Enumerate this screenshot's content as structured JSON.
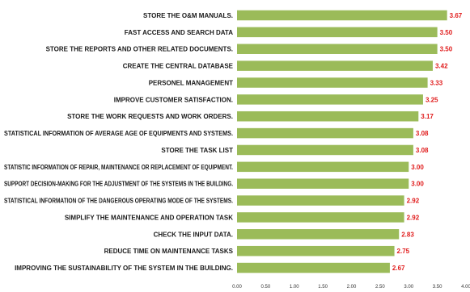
{
  "chart_data": {
    "type": "bar",
    "orientation": "horizontal",
    "categories": [
      "STORE THE O&M MANUALS.",
      "FAST ACCESS AND SEARCH DATA",
      "STORE THE  REPORTS AND OTHER RELATED DOCUMENTS.",
      "CREATE THE CENTRAL DATABASE",
      "PERSONEL MANAGEMENT",
      "IMPROVE CUSTOMER SATISFACTION.",
      "STORE THE WORK REQUESTS AND WORK ORDERS.",
      "STATISTICAL INFORMATION OF AVERAGE AGE OF EQUIPMENTS AND SYSTEMS.",
      "STORE THE TASK LIST",
      "STATISTIC INFORMATION OF REPAIR, MAINTENANCE OR REPLACEMENT OF EQUIPMENT.",
      "SUPPORT DECISION-MAKING FOR THE ADJUSTMENT OF THE SYSTEMS IN THE BUILDING.",
      "STATISTICAL INFORMATION OF THE DANGEROUS OPERATING MODE OF THE SYSTEMS.",
      "SIMPLIFY THE MAINTENANCE AND OPERATION TASK",
      "CHECK THE INPUT DATA.",
      "REDUCE TIME ON MAINTENANCE TASKS",
      "IMPROVING THE SUSTAINABILITY OF THE SYSTEM IN THE BUILDING."
    ],
    "values": [
      3.67,
      3.5,
      3.5,
      3.42,
      3.33,
      3.25,
      3.17,
      3.08,
      3.08,
      3.0,
      3.0,
      2.92,
      2.92,
      2.83,
      2.75,
      2.67
    ],
    "value_labels": [
      "3.67",
      "3.50",
      "3.50",
      "3.42",
      "3.33",
      "3.25",
      "3.17",
      "3.08",
      "3.08",
      "3.00",
      "3.00",
      "2.92",
      "2.92",
      "2.83",
      "2.75",
      "2.67"
    ],
    "xlim": [
      0,
      4
    ],
    "x_ticks": [
      "0.00",
      "0.50",
      "1.00",
      "1.50",
      "2.00",
      "2.50",
      "3.00",
      "3.50",
      "4.00"
    ],
    "title": "",
    "xlabel": "",
    "ylabel": "",
    "grid": false,
    "legend": "none",
    "bar_color": "#9bbb59",
    "value_label_color": "#e01b1b"
  }
}
